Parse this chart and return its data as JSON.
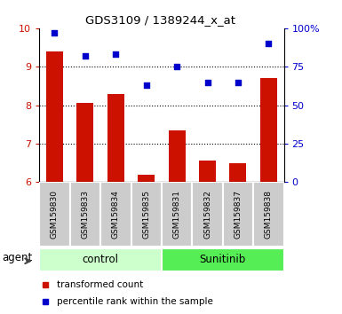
{
  "title": "GDS3109 / 1389244_x_at",
  "samples": [
    "GSM159830",
    "GSM159833",
    "GSM159834",
    "GSM159835",
    "GSM159831",
    "GSM159832",
    "GSM159837",
    "GSM159838"
  ],
  "bar_values": [
    9.4,
    8.05,
    8.3,
    6.2,
    7.35,
    6.55,
    6.5,
    8.7
  ],
  "dot_values": [
    97,
    82,
    83,
    63,
    75,
    65,
    65,
    90
  ],
  "groups": [
    {
      "label": "control",
      "indices": [
        0,
        1,
        2,
        3
      ],
      "color": "#ccffcc"
    },
    {
      "label": "Sunitinib",
      "indices": [
        4,
        5,
        6,
        7
      ],
      "color": "#55ee55"
    }
  ],
  "agent_label": "agent",
  "bar_color": "#cc1100",
  "dot_color": "#0000cc",
  "ylim_left": [
    6,
    10
  ],
  "ylim_right": [
    0,
    100
  ],
  "yticks_left": [
    6,
    7,
    8,
    9,
    10
  ],
  "yticks_right": [
    0,
    25,
    50,
    75,
    100
  ],
  "legend_bar": "transformed count",
  "legend_dot": "percentile rank within the sample",
  "tick_label_color_left": "#cc1100",
  "tick_label_color_right": "#0000cc",
  "grid_dotted_at": [
    7,
    8,
    9
  ],
  "sample_box_color": "#cccccc",
  "bar_width": 0.55
}
